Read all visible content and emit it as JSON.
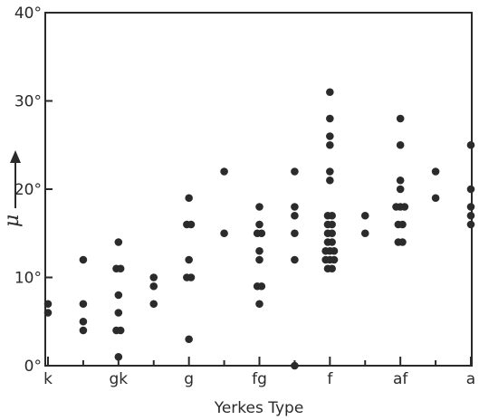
{
  "chart_data": {
    "type": "scatter",
    "title": "",
    "xlabel": "Yerkes Type",
    "ylabel": "μ",
    "categories": [
      "k",
      "gk",
      "g",
      "fg",
      "f",
      "af",
      "a"
    ],
    "ylim": [
      0,
      40
    ],
    "yticks": [
      0,
      10,
      20,
      30,
      40
    ],
    "ytick_labels": [
      "0°",
      "10°",
      "20°",
      "30°",
      "40°"
    ],
    "grid": false,
    "legend": "none",
    "marker_color": "#2b2b2b",
    "series": [
      {
        "points": [
          {
            "x": 0.0,
            "y": 6
          },
          {
            "x": 0.0,
            "y": 7
          },
          {
            "x": 0.5,
            "y": 4
          },
          {
            "x": 0.5,
            "y": 5
          },
          {
            "x": 0.5,
            "y": 7
          },
          {
            "x": 0.5,
            "y": 12
          },
          {
            "x": 1.0,
            "y": 1
          },
          {
            "x": 0.97,
            "y": 4
          },
          {
            "x": 1.03,
            "y": 4
          },
          {
            "x": 1.0,
            "y": 6
          },
          {
            "x": 1.0,
            "y": 8
          },
          {
            "x": 0.97,
            "y": 11
          },
          {
            "x": 1.03,
            "y": 11
          },
          {
            "x": 1.0,
            "y": 14
          },
          {
            "x": 1.5,
            "y": 7
          },
          {
            "x": 1.5,
            "y": 9
          },
          {
            "x": 1.5,
            "y": 10
          },
          {
            "x": 2.0,
            "y": 3
          },
          {
            "x": 1.97,
            "y": 10
          },
          {
            "x": 2.03,
            "y": 10
          },
          {
            "x": 2.0,
            "y": 12
          },
          {
            "x": 1.97,
            "y": 16
          },
          {
            "x": 2.03,
            "y": 16
          },
          {
            "x": 2.0,
            "y": 19
          },
          {
            "x": 2.5,
            "y": 15
          },
          {
            "x": 2.5,
            "y": 22
          },
          {
            "x": 3.0,
            "y": 7
          },
          {
            "x": 2.97,
            "y": 9
          },
          {
            "x": 3.03,
            "y": 9
          },
          {
            "x": 3.0,
            "y": 12
          },
          {
            "x": 3.0,
            "y": 13
          },
          {
            "x": 2.97,
            "y": 15
          },
          {
            "x": 3.03,
            "y": 15
          },
          {
            "x": 3.0,
            "y": 16
          },
          {
            "x": 3.0,
            "y": 18
          },
          {
            "x": 3.5,
            "y": 0
          },
          {
            "x": 3.5,
            "y": 12
          },
          {
            "x": 3.5,
            "y": 15
          },
          {
            "x": 3.5,
            "y": 17
          },
          {
            "x": 3.5,
            "y": 18
          },
          {
            "x": 3.5,
            "y": 22
          },
          {
            "x": 3.97,
            "y": 11
          },
          {
            "x": 4.03,
            "y": 11
          },
          {
            "x": 3.94,
            "y": 12
          },
          {
            "x": 4.0,
            "y": 12
          },
          {
            "x": 4.06,
            "y": 12
          },
          {
            "x": 3.94,
            "y": 13
          },
          {
            "x": 4.0,
            "y": 13
          },
          {
            "x": 4.06,
            "y": 13
          },
          {
            "x": 3.97,
            "y": 14
          },
          {
            "x": 4.03,
            "y": 14
          },
          {
            "x": 3.97,
            "y": 15
          },
          {
            "x": 4.03,
            "y": 15
          },
          {
            "x": 3.97,
            "y": 16
          },
          {
            "x": 4.03,
            "y": 16
          },
          {
            "x": 3.97,
            "y": 17
          },
          {
            "x": 4.03,
            "y": 17
          },
          {
            "x": 4.0,
            "y": 21
          },
          {
            "x": 4.0,
            "y": 22
          },
          {
            "x": 4.0,
            "y": 25
          },
          {
            "x": 4.0,
            "y": 26
          },
          {
            "x": 4.0,
            "y": 28
          },
          {
            "x": 4.0,
            "y": 31
          },
          {
            "x": 4.5,
            "y": 15
          },
          {
            "x": 4.5,
            "y": 17
          },
          {
            "x": 4.97,
            "y": 14
          },
          {
            "x": 5.03,
            "y": 14
          },
          {
            "x": 4.97,
            "y": 16
          },
          {
            "x": 5.03,
            "y": 16
          },
          {
            "x": 4.94,
            "y": 18
          },
          {
            "x": 5.0,
            "y": 18
          },
          {
            "x": 5.06,
            "y": 18
          },
          {
            "x": 5.0,
            "y": 20
          },
          {
            "x": 5.0,
            "y": 21
          },
          {
            "x": 5.0,
            "y": 25
          },
          {
            "x": 5.0,
            "y": 28
          },
          {
            "x": 5.5,
            "y": 19
          },
          {
            "x": 5.5,
            "y": 22
          },
          {
            "x": 6.0,
            "y": 16
          },
          {
            "x": 6.0,
            "y": 17
          },
          {
            "x": 6.0,
            "y": 18
          },
          {
            "x": 6.0,
            "y": 20
          },
          {
            "x": 6.0,
            "y": 25
          }
        ]
      }
    ]
  }
}
